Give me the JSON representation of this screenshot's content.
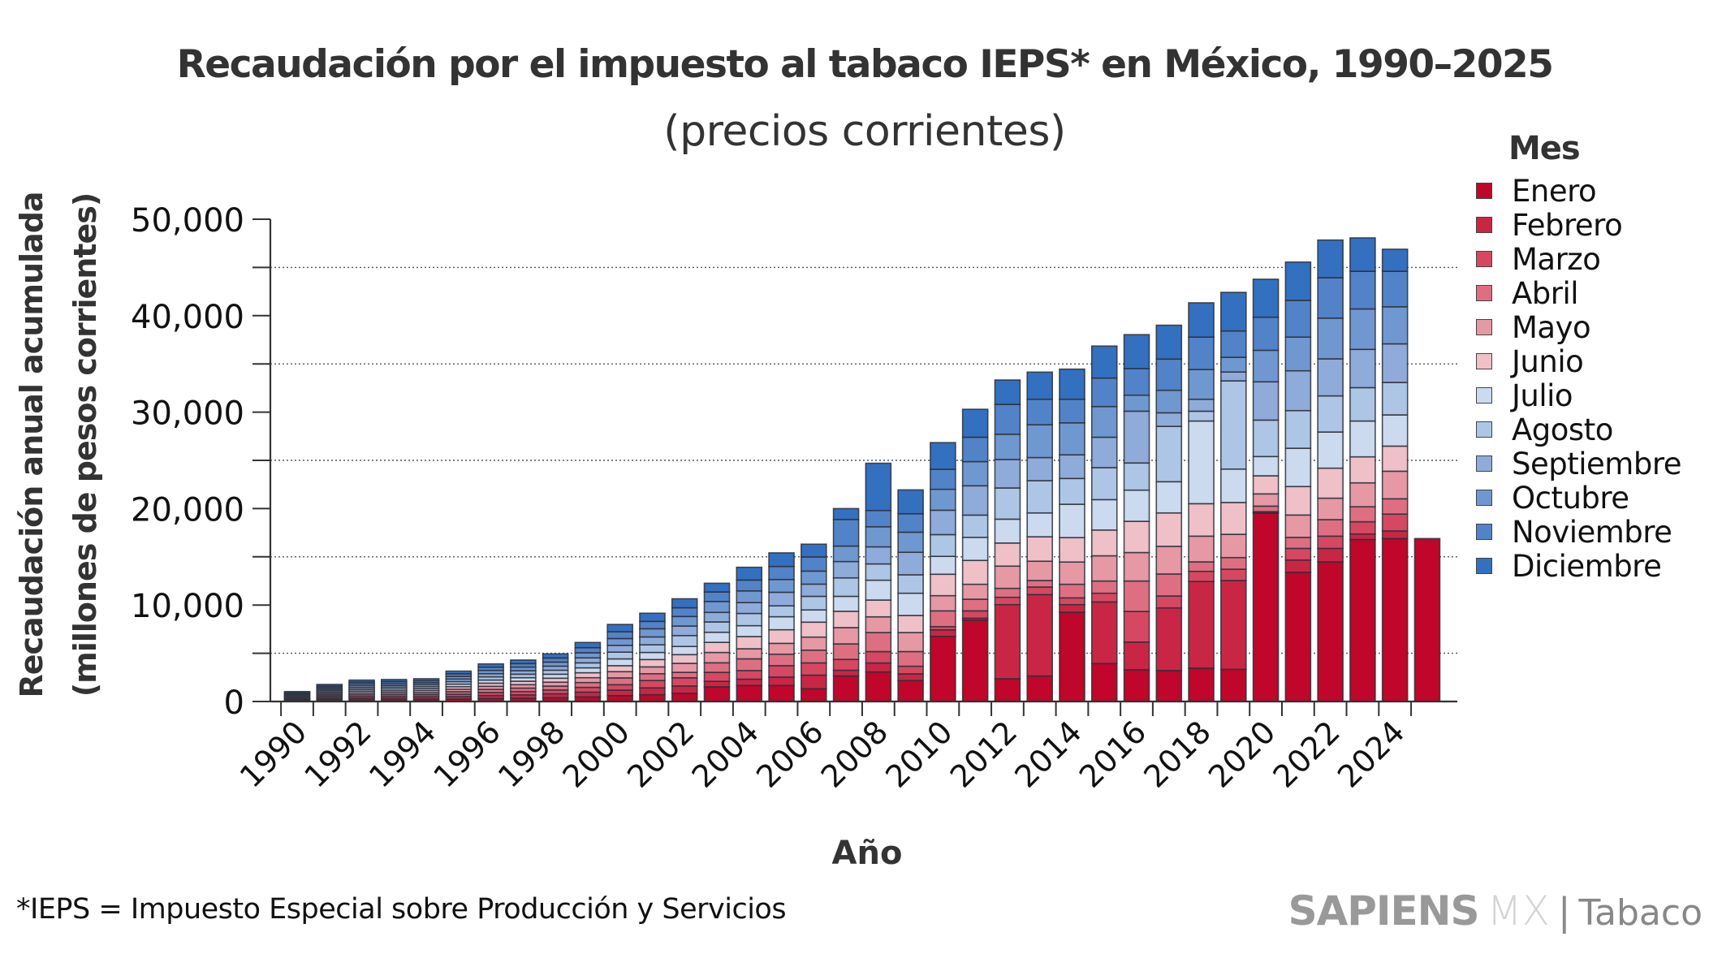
{
  "title": "Recaudación por el impuesto al tabaco IEPS* en México, 1990–2025",
  "subtitle": "(precios corrientes)",
  "footnote": "*IEPS = Impuesto Especial sobre Producción y Servicios",
  "brand": {
    "main": "SAPIENS",
    "sub": "MX",
    "separator": "|",
    "section": "Tabaco"
  },
  "chart_data": {
    "type": "bar",
    "stacked": true,
    "title": "Recaudación por el impuesto al tabaco IEPS* en México, 1990–2025",
    "subtitle": "(precios corrientes)",
    "xlabel": "Año",
    "ylabel": "Recaudación anual acumulada",
    "ylabel2": "(millones de pesos corrientes)",
    "ylim": [
      0,
      50000
    ],
    "yticks": [
      0,
      10000,
      20000,
      30000,
      40000,
      50000
    ],
    "ytick_labels": [
      "0",
      "10,000",
      "20,000",
      "30,000",
      "40,000",
      "50,000"
    ],
    "grid_minor_dotted": [
      5000,
      15000,
      25000,
      35000,
      45000
    ],
    "xtick_labels": [
      "1990",
      "1992",
      "1994",
      "1996",
      "1998",
      "2000",
      "2002",
      "2004",
      "2006",
      "2008",
      "2010",
      "2012",
      "2014",
      "2016",
      "2018",
      "2020",
      "2022",
      "2024"
    ],
    "legend_title": "Mes",
    "legend_position": "right",
    "categories": [
      1990,
      1991,
      1992,
      1993,
      1994,
      1995,
      1996,
      1997,
      1998,
      1999,
      2000,
      2001,
      2002,
      2003,
      2004,
      2005,
      2006,
      2007,
      2008,
      2009,
      2010,
      2011,
      2012,
      2013,
      2014,
      2015,
      2016,
      2017,
      2018,
      2019,
      2020,
      2021,
      2022,
      2023,
      2024,
      2025
    ],
    "series": [
      {
        "name": "Enero",
        "color": "#c0062a",
        "values": [
          80,
          140,
          175,
          180,
          185,
          250,
          310,
          340,
          395,
          480,
          619,
          706,
          848,
          1525,
          1662,
          1662,
          1324,
          2648,
          3066,
          2166,
          6751,
          8439,
          2363,
          2644,
          9255,
          3938,
          3291,
          3207,
          3460,
          3333,
          19524,
          13397,
          14476,
          16794,
          16889,
          16889
        ]
      },
      {
        "name": "Febrero",
        "color": "#c92645",
        "values": [
          80,
          140,
          175,
          180,
          190,
          250,
          310,
          345,
          400,
          490,
          562,
          706,
          762,
          565,
          648,
          873,
          1408,
          592,
          928,
          703,
          675,
          197,
          7679,
          8439,
          787,
          6385,
          2869,
          6498,
          8984,
          9207,
          66,
          1270,
          1397,
          571,
          794,
          null
        ]
      },
      {
        "name": "Marzo",
        "color": "#d64862",
        "values": [
          80,
          145,
          180,
          185,
          190,
          255,
          315,
          350,
          400,
          495,
          563,
          763,
          848,
          933,
          901,
          1183,
          1268,
          1126,
          1182,
          788,
          338,
          759,
          760,
          788,
          703,
          901,
          3179,
          1237,
          1048,
          1174,
          93,
          1206,
          1270,
          1270,
          1746,
          null
        ]
      },
      {
        "name": "Abril",
        "color": "#de6f82",
        "values": [
          85,
          145,
          180,
          185,
          195,
          260,
          320,
          355,
          405,
          500,
          703,
          706,
          565,
          989,
          1212,
          1184,
          1324,
          1606,
          1969,
          1519,
          1631,
          1210,
          928,
          675,
          1407,
          1265,
          3150,
          2279,
          984,
          1207,
          571,
          1143,
          1714,
          1555,
          1587,
          null
        ]
      },
      {
        "name": "Mayo",
        "color": "#e698a5",
        "values": [
          85,
          145,
          185,
          190,
          195,
          260,
          320,
          355,
          405,
          505,
          647,
          707,
          932,
          1073,
          1042,
          1126,
          1352,
          1690,
          1631,
          1969,
          1575,
          1547,
          2307,
          1997,
          2307,
          2616,
          2954,
          2869,
          2667,
          2412,
          1270,
          2317,
          2222,
          2477,
          2857,
          null
        ]
      },
      {
        "name": "Junio",
        "color": "#efc0c8",
        "values": [
          85,
          145,
          185,
          190,
          195,
          260,
          325,
          360,
          410,
          510,
          619,
          762,
          904,
          1045,
          1268,
          1409,
          1550,
          1690,
          1744,
          1772,
          2223,
          2475,
          2391,
          2532,
          2531,
          2673,
          3235,
          3460,
          3365,
          3302,
          1873,
          2953,
          3111,
          2698,
          2603,
          null
        ]
      },
      {
        "name": "Julio",
        "color": "#ccdaef",
        "values": [
          85,
          145,
          185,
          190,
          195,
          265,
          325,
          360,
          415,
          510,
          703,
          735,
          847,
          1046,
          1126,
          1352,
          1268,
          1550,
          2054,
          2307,
          1856,
          2391,
          2475,
          2475,
          3460,
          3150,
          3235,
          3235,
          8571,
          3460,
          2000,
          3968,
          3747,
          3714,
          3238,
          null
        ]
      },
      {
        "name": "Agosto",
        "color": "#aec6e6",
        "values": [
          85,
          150,
          185,
          190,
          200,
          265,
          330,
          365,
          415,
          515,
          703,
          791,
          1130,
          1073,
          1268,
          1127,
          1408,
          1915,
          1688,
          1912,
          2251,
          2307,
          3235,
          3347,
          2672,
          3319,
          2813,
          5738,
          1016,
          9143,
          3778,
          3905,
          3746,
          3461,
          3365,
          null
        ]
      },
      {
        "name": "Septiembre",
        "color": "#8fabda",
        "values": [
          85,
          150,
          190,
          195,
          200,
          265,
          330,
          365,
          420,
          520,
          703,
          819,
          989,
          989,
          1127,
          1408,
          1267,
          1690,
          1772,
          2335,
          2531,
          3038,
          2953,
          2391,
          2448,
          3151,
          5372,
          1407,
          1238,
          921,
          3968,
          4127,
          3841,
          3968,
          4000,
          null
        ]
      },
      {
        "name": "Octubre",
        "color": "#7098d0",
        "values": [
          85,
          150,
          190,
          195,
          200,
          270,
          335,
          370,
          420,
          525,
          704,
          848,
          989,
          1130,
          1211,
          1324,
          1352,
          1606,
          2081,
          2082,
          2166,
          2503,
          2616,
          3404,
          3319,
          3179,
          1660,
          2334,
          3080,
          1524,
          3270,
          3492,
          4222,
          4190,
          3842,
          null
        ]
      },
      {
        "name": "Noviembre",
        "color": "#5283c8",
        "values": [
          90,
          155,
          190,
          195,
          205,
          275,
          340,
          365,
          425,
          530,
          703,
          762,
          904,
          989,
          1127,
          1352,
          1465,
          2760,
          1688,
          1913,
          2082,
          2532,
          3095,
          2644,
          2447,
          2953,
          2757,
          3236,
          3365,
          2730,
          3428,
          3809,
          4191,
          3905,
          3682,
          null
        ]
      },
      {
        "name": "Diciembre",
        "color": "#3470c0",
        "values": [
          105,
          160,
          200,
          205,
          210,
          275,
          340,
          370,
          430,
          540,
          760,
          848,
          932,
          903,
          1324,
          1409,
          1324,
          1127,
          4897,
          2475,
          2756,
          2897,
          2531,
          2813,
          3122,
          3320,
          3515,
          3510,
          3555,
          4000,
          3937,
          3969,
          3904,
          3460,
          2286,
          null
        ]
      }
    ]
  }
}
